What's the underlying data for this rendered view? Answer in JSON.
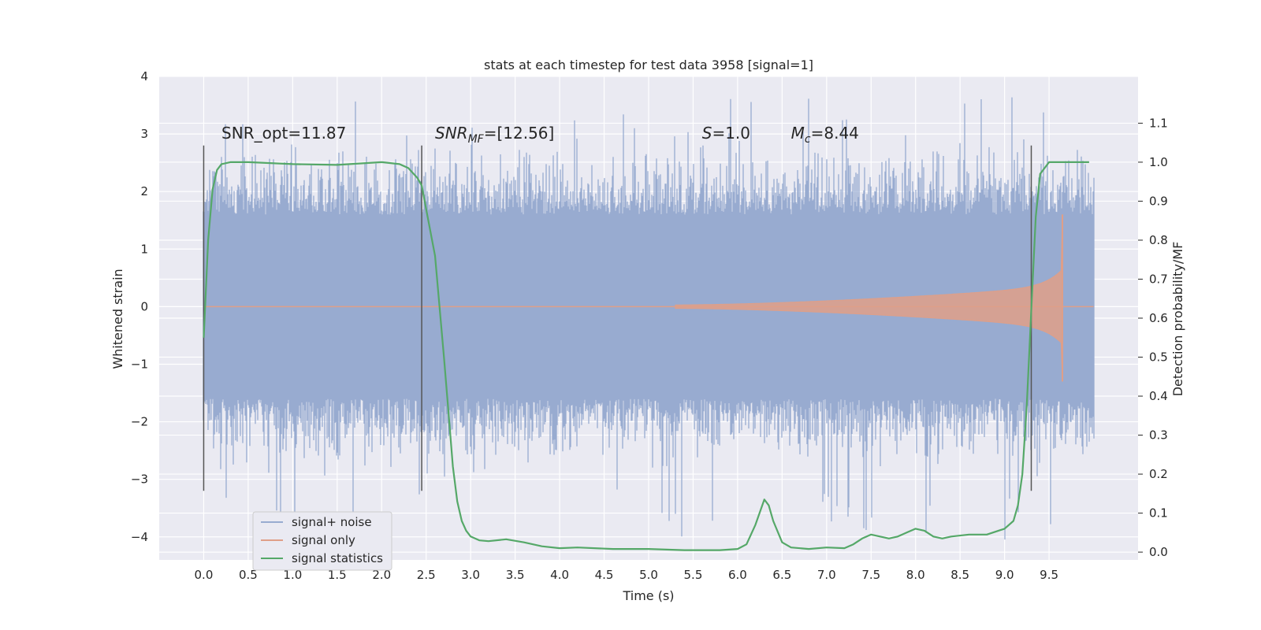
{
  "chart_data": {
    "type": "line",
    "title": "stats at each timestep for test data 3958 [signal=1]",
    "xlabel": "Time (s)",
    "ylabel": "Whitened strain",
    "ylabel_right": "Detection probability/MF",
    "xlim": [
      -0.5,
      10.5
    ],
    "ylim": [
      -4.4,
      4.0
    ],
    "ylim_right": [
      -0.02,
      1.22
    ],
    "xticks": [
      "0.0",
      "0.5",
      "1.0",
      "1.5",
      "2.0",
      "2.5",
      "3.0",
      "3.5",
      "4.0",
      "4.5",
      "5.0",
      "5.5",
      "6.0",
      "6.5",
      "7.0",
      "7.5",
      "8.0",
      "8.5",
      "9.0",
      "9.5"
    ],
    "yticks_left": [
      "4",
      "3",
      "2",
      "1",
      "0",
      "−1",
      "−2",
      "−3",
      "−4"
    ],
    "yticks_right": [
      "1.1",
      "1.0",
      "0.9",
      "0.8",
      "0.7",
      "0.6",
      "0.5",
      "0.4",
      "0.3",
      "0.2",
      "0.1",
      "0.0"
    ],
    "grid": true,
    "legend_position": "lower-left",
    "colors": {
      "background": "#eaeaf2",
      "grid": "#ffffff",
      "noise": "#98abd0",
      "signal": "#df9f88",
      "stats": "#55a868",
      "vline": "#555555"
    },
    "series": [
      {
        "name": "signal+ noise",
        "role": "noise",
        "x_range": [
          0.0,
          10.0
        ],
        "typical_amplitude": 1.6,
        "max": 3.65,
        "min": -4.05
      },
      {
        "name": "signal only",
        "role": "chirp",
        "x_range": [
          0.0,
          10.0
        ],
        "onset": 5.3,
        "merger": 9.65,
        "peak_positive": 1.6,
        "peak_negative": -1.3
      },
      {
        "name": "signal statistics",
        "role": "stats",
        "x": [
          0.0,
          0.05,
          0.1,
          0.15,
          0.2,
          0.3,
          0.5,
          1.0,
          1.5,
          2.0,
          2.2,
          2.3,
          2.4,
          2.45,
          2.5,
          2.6,
          2.7,
          2.75,
          2.8,
          2.85,
          2.9,
          2.95,
          3.0,
          3.1,
          3.2,
          3.4,
          3.6,
          3.8,
          4.0,
          4.2,
          4.6,
          5.0,
          5.4,
          5.8,
          6.0,
          6.1,
          6.2,
          6.3,
          6.35,
          6.4,
          6.5,
          6.6,
          6.8,
          7.0,
          7.2,
          7.3,
          7.4,
          7.5,
          7.6,
          7.7,
          7.8,
          7.9,
          8.0,
          8.1,
          8.2,
          8.3,
          8.4,
          8.6,
          8.8,
          9.0,
          9.1,
          9.15,
          9.2,
          9.25,
          9.3,
          9.35,
          9.4,
          9.5,
          9.7,
          9.95
        ],
        "y": [
          0.55,
          0.8,
          0.93,
          0.98,
          0.995,
          1.0,
          1.0,
          0.995,
          0.993,
          1.0,
          0.995,
          0.985,
          0.96,
          0.94,
          0.88,
          0.76,
          0.5,
          0.36,
          0.22,
          0.13,
          0.08,
          0.055,
          0.04,
          0.03,
          0.028,
          0.033,
          0.025,
          0.015,
          0.01,
          0.012,
          0.008,
          0.008,
          0.005,
          0.005,
          0.008,
          0.02,
          0.07,
          0.135,
          0.12,
          0.08,
          0.025,
          0.012,
          0.008,
          0.012,
          0.01,
          0.02,
          0.035,
          0.045,
          0.04,
          0.035,
          0.04,
          0.05,
          0.06,
          0.055,
          0.04,
          0.035,
          0.04,
          0.045,
          0.045,
          0.06,
          0.08,
          0.12,
          0.2,
          0.38,
          0.62,
          0.86,
          0.97,
          1.0,
          1.0,
          1.0
        ]
      }
    ],
    "vertical_lines": [
      0.0,
      2.45,
      9.3
    ],
    "vertical_lines_range": [
      -3.2,
      2.8
    ],
    "annotations": [
      {
        "id": "snr-opt",
        "x": 0.2,
        "y": 2.92,
        "text": "SNR_opt=11.87"
      },
      {
        "id": "snr-mf",
        "x": 2.6,
        "y": 2.92,
        "main": "SNR",
        "sub": "MF",
        "rest": "=[12.56]"
      },
      {
        "id": "s-value",
        "x": 5.6,
        "y": 2.92,
        "main": "S",
        "rest": "=1.0"
      },
      {
        "id": "mc-value",
        "x": 6.6,
        "y": 2.92,
        "main": "M",
        "sub": "c",
        "rest": "=8.44"
      }
    ]
  }
}
